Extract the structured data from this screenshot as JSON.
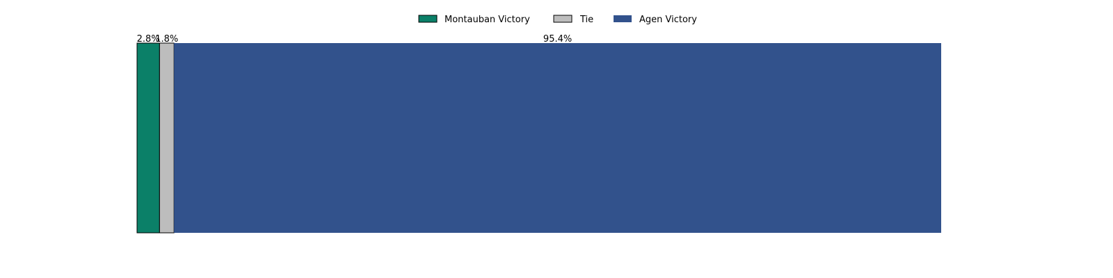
{
  "chart_data": {
    "type": "bar",
    "orientation": "horizontal-stacked",
    "title": "",
    "xlabel": "",
    "ylabel": "",
    "xlim": [
      0,
      100
    ],
    "grid": false,
    "axes_visible": false,
    "legend_placement": "top-center",
    "series": [
      {
        "name": "Montauban Victory",
        "value": 2.8,
        "label": "2.8%",
        "color": "#0b8068",
        "outlined": true
      },
      {
        "name": "Tie",
        "value": 1.8,
        "label": "1.8%",
        "color": "#bdbdbd",
        "outlined": true
      },
      {
        "name": "Agen Victory",
        "value": 95.4,
        "label": "95.4%",
        "color": "#32528c",
        "outlined": false
      }
    ]
  }
}
